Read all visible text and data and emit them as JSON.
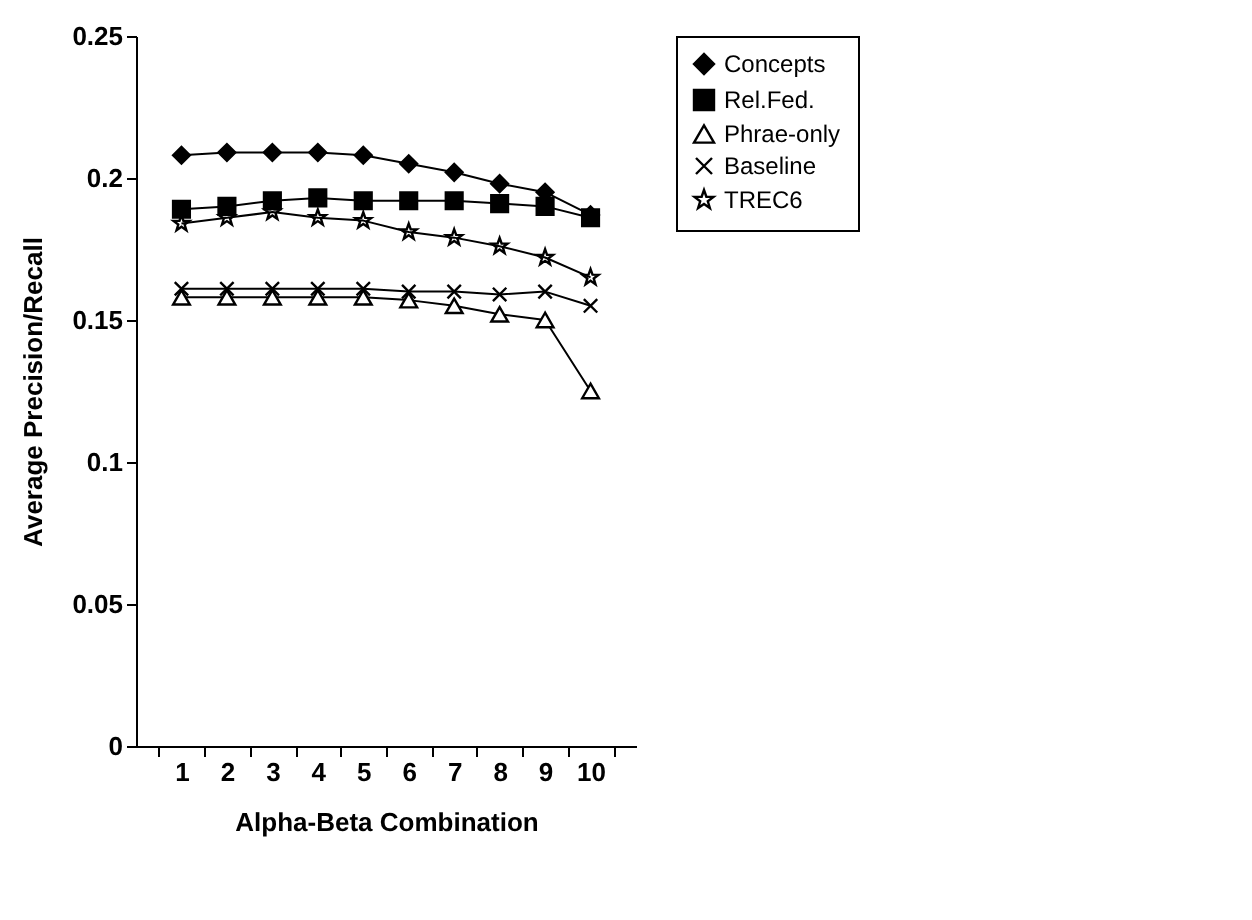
{
  "chart_data": {
    "type": "line",
    "xlabel": "Alpha-Beta Combination",
    "ylabel": "Average Precision/Recall",
    "categories": [
      "1",
      "2",
      "3",
      "4",
      "5",
      "6",
      "7",
      "8",
      "9",
      "10"
    ],
    "series": [
      {
        "name": "Concepts",
        "color": "#000000",
        "marker": "diamond",
        "values": [
          0.208,
          0.209,
          0.209,
          0.209,
          0.208,
          0.205,
          0.202,
          0.198,
          0.195,
          0.187
        ]
      },
      {
        "name": "Rel.Fed.",
        "color": "#000000",
        "marker": "square",
        "values": [
          0.189,
          0.19,
          0.192,
          0.193,
          0.192,
          0.192,
          0.192,
          0.191,
          0.19,
          0.186
        ]
      },
      {
        "name": "Phrae-only",
        "color": "#000000",
        "marker": "triangle",
        "values": [
          0.158,
          0.158,
          0.158,
          0.158,
          0.158,
          0.157,
          0.155,
          0.152,
          0.15,
          0.125
        ]
      },
      {
        "name": "Baseline",
        "color": "#000000",
        "marker": "cross",
        "values": [
          0.161,
          0.161,
          0.161,
          0.161,
          0.161,
          0.16,
          0.16,
          0.159,
          0.16,
          0.155
        ]
      },
      {
        "name": "TREC6",
        "color": "#000000",
        "marker": "star",
        "values": [
          0.184,
          0.186,
          0.188,
          0.186,
          0.185,
          0.181,
          0.179,
          0.176,
          0.172,
          0.165
        ]
      }
    ],
    "ylim": [
      0,
      0.25
    ],
    "yticks": [
      0,
      0.05,
      0.1,
      0.15,
      0.2,
      0.25
    ],
    "grid": false,
    "legend": "right",
    "line_style": "solid"
  }
}
